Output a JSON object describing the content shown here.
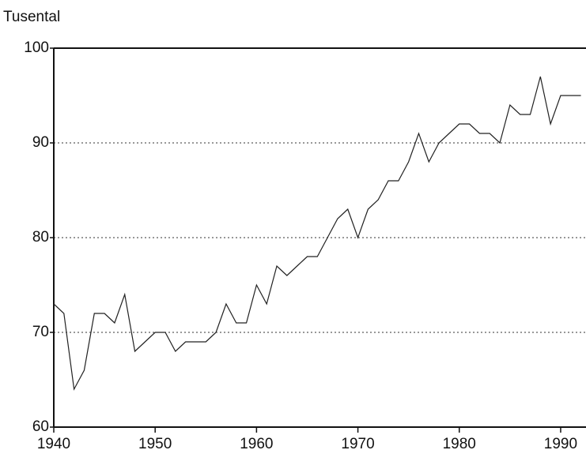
{
  "chart_data": {
    "type": "line",
    "y_label": "Tusental",
    "x": [
      1940,
      1941,
      1942,
      1943,
      1944,
      1945,
      1946,
      1947,
      1948,
      1949,
      1950,
      1951,
      1952,
      1953,
      1954,
      1955,
      1956,
      1957,
      1958,
      1959,
      1960,
      1961,
      1962,
      1963,
      1964,
      1965,
      1966,
      1967,
      1968,
      1969,
      1970,
      1971,
      1972,
      1973,
      1974,
      1975,
      1976,
      1977,
      1978,
      1979,
      1980,
      1981,
      1982,
      1983,
      1984,
      1985,
      1986,
      1987,
      1988,
      1989,
      1990,
      1991,
      1992
    ],
    "series": [
      {
        "color": "#222",
        "values": [
          73,
          72,
          64,
          66,
          72,
          72,
          71,
          74,
          68,
          69,
          70,
          70,
          68,
          69,
          69,
          69,
          70,
          73,
          71,
          71,
          75,
          73,
          77,
          76,
          77,
          78,
          78,
          80,
          82,
          83,
          80,
          83,
          84,
          86,
          86,
          88,
          91,
          88,
          90,
          91,
          92,
          92,
          91,
          91,
          90,
          94,
          93,
          93,
          97,
          92,
          95,
          95,
          95
        ]
      }
    ],
    "xlim": [
      1940,
      1992.5
    ],
    "xticks": [
      1940,
      1950,
      1960,
      1970,
      1980,
      1990
    ],
    "ylim": [
      60,
      100
    ],
    "yticks": [
      60,
      70,
      80,
      90,
      100
    ],
    "grid": true
  }
}
